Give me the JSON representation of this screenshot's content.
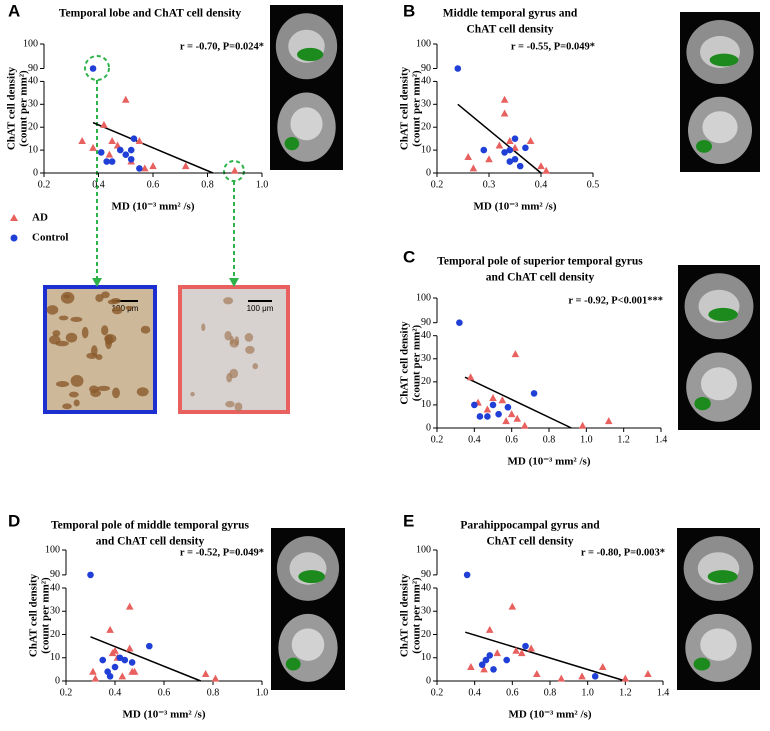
{
  "chart_data": [
    {
      "type": "scatter",
      "panel": "A",
      "title": [
        "Temporal lobe and ChAT cell density"
      ],
      "annotation": "r = -0.70, P=0.024*",
      "x_label": "MD (10⁻³ mm² /s)",
      "y_label": [
        "ChAT cell density",
        "(count per mm²)"
      ],
      "xlim": [
        0.2,
        1.0
      ],
      "xticks": [
        0.2,
        0.4,
        0.6,
        0.8,
        {
          "value": 1,
          "label": "1.0"
        }
      ],
      "ylim": [
        0,
        100
      ],
      "ybreak": [
        40,
        90
      ],
      "yticks": [
        0,
        10,
        20,
        30,
        40,
        90,
        100
      ],
      "series": [
        {
          "name": "AD",
          "color": "#e8615f",
          "marker": "triangle",
          "x": [
            0.34,
            0.38,
            0.42,
            0.44,
            0.45,
            0.47,
            0.5,
            0.52,
            0.55,
            0.57,
            0.6,
            0.72,
            0.9
          ],
          "values": [
            14,
            11,
            21,
            8,
            14,
            12,
            32,
            5,
            14,
            2,
            3,
            3,
            1
          ]
        },
        {
          "name": "Control",
          "color": "#1f3fd6",
          "marker": "circle",
          "x": [
            0.38,
            0.41,
            0.43,
            0.45,
            0.48,
            0.5,
            0.52,
            0.52,
            0.53,
            0.55
          ],
          "values": [
            90,
            9,
            5,
            5,
            10,
            8,
            10,
            6,
            15,
            2
          ]
        }
      ],
      "fit": {
        "x": [
          0.38,
          0.82
        ],
        "values": [
          22,
          0
        ]
      }
    },
    {
      "type": "scatter",
      "panel": "B",
      "title": [
        "Middle temporal gyrus and",
        "ChAT cell density"
      ],
      "annotation": "r = -0.55, P=0.049*",
      "x_label": "MD (10⁻³ mm² /s)",
      "y_label": [
        "ChAT cell density",
        "(count per mm²)"
      ],
      "xlim": [
        0.2,
        0.5
      ],
      "xticks": [
        0.2,
        0.3,
        0.4,
        0.5
      ],
      "ylim": [
        0,
        100
      ],
      "ybreak": [
        40,
        90
      ],
      "yticks": [
        0,
        10,
        20,
        30,
        40,
        90,
        100
      ],
      "series": [
        {
          "color": "#e8615f",
          "marker": "triangle",
          "x": [
            0.26,
            0.27,
            0.3,
            0.32,
            0.33,
            0.33,
            0.34,
            0.35,
            0.38,
            0.4,
            0.41
          ],
          "values": [
            7,
            2,
            6,
            12,
            32,
            26,
            14,
            11,
            14,
            3,
            1
          ]
        },
        {
          "color": "#1f3fd6",
          "marker": "circle",
          "x": [
            0.24,
            0.29,
            0.33,
            0.34,
            0.34,
            0.35,
            0.35,
            0.36,
            0.37
          ],
          "values": [
            90,
            10,
            9,
            5,
            10,
            15,
            6,
            3,
            11
          ]
        }
      ],
      "fit": {
        "x": [
          0.24,
          0.4
        ],
        "values": [
          30,
          0
        ]
      }
    },
    {
      "type": "scatter",
      "panel": "C",
      "title": [
        "Temporal pole of superior temporal gyrus",
        "and ChAT cell density"
      ],
      "annotation": "r = -0.92, P<0.001***",
      "x_label": "MD (10⁻³ mm² /s)",
      "y_label": [
        "ChAT cell density",
        "(count per mm²)"
      ],
      "xlim": [
        0.2,
        1.4
      ],
      "xticks": [
        0.2,
        0.4,
        0.6,
        0.8,
        {
          "value": 1,
          "label": "1.0"
        },
        1.2,
        1.4
      ],
      "ylim": [
        0,
        100
      ],
      "ybreak": [
        40,
        90
      ],
      "yticks": [
        0,
        10,
        20,
        30,
        40,
        90,
        100
      ],
      "series": [
        {
          "color": "#e8615f",
          "marker": "triangle",
          "x": [
            0.38,
            0.42,
            0.47,
            0.5,
            0.55,
            0.57,
            0.6,
            0.62,
            0.63,
            0.67,
            0.98,
            1.12
          ],
          "values": [
            22,
            11,
            8,
            13,
            12,
            3,
            6,
            32,
            4,
            1,
            1,
            3
          ]
        },
        {
          "color": "#1f3fd6",
          "marker": "circle",
          "x": [
            0.32,
            0.4,
            0.43,
            0.47,
            0.5,
            0.53,
            0.58,
            0.72
          ],
          "values": [
            90,
            10,
            5,
            5,
            10,
            6,
            9,
            15
          ]
        }
      ],
      "fit": {
        "x": [
          0.35,
          0.92
        ],
        "values": [
          22,
          0
        ]
      }
    },
    {
      "type": "scatter",
      "panel": "D",
      "title": [
        "Temporal pole of middle temporal gyrus",
        "and ChAT cell density"
      ],
      "annotation": "r = -0.52, P=0.049*",
      "x_label": "MD (10⁻³ mm² /s)",
      "y_label": [
        "ChAT cell density",
        "(count per mm²)"
      ],
      "xlim": [
        0.2,
        1.0
      ],
      "xticks": [
        0.2,
        0.4,
        0.6,
        0.8,
        {
          "value": 1,
          "label": "1.0"
        }
      ],
      "ylim": [
        0,
        100
      ],
      "ybreak": [
        40,
        90
      ],
      "yticks": [
        0,
        10,
        20,
        30,
        40,
        90,
        100
      ],
      "series": [
        {
          "color": "#e8615f",
          "marker": "triangle",
          "x": [
            0.31,
            0.32,
            0.38,
            0.39,
            0.4,
            0.41,
            0.43,
            0.46,
            0.46,
            0.47,
            0.48,
            0.77,
            0.81
          ],
          "values": [
            4,
            1,
            22,
            12,
            13,
            10,
            2,
            32,
            14,
            4,
            4,
            3,
            1
          ]
        },
        {
          "color": "#1f3fd6",
          "marker": "circle",
          "x": [
            0.3,
            0.35,
            0.37,
            0.38,
            0.4,
            0.42,
            0.44,
            0.47,
            0.54
          ],
          "values": [
            90,
            9,
            4,
            2,
            6,
            10,
            9,
            8,
            15
          ]
        }
      ],
      "fit": {
        "x": [
          0.3,
          0.75
        ],
        "values": [
          19,
          0
        ]
      }
    },
    {
      "type": "scatter",
      "panel": "E",
      "title": [
        "Parahippocampal gyrus and",
        "ChAT cell density"
      ],
      "annotation": "r = -0.80, P=0.003*",
      "x_label": "MD (10⁻³ mm² /s)",
      "y_label": [
        "ChAT cell density",
        "(count per mm²)"
      ],
      "xlim": [
        0.2,
        1.4
      ],
      "xticks": [
        0.2,
        0.4,
        0.6,
        0.8,
        {
          "value": 1,
          "label": "1.0"
        },
        1.2,
        1.4
      ],
      "ylim": [
        0,
        100
      ],
      "ybreak": [
        40,
        90
      ],
      "yticks": [
        0,
        10,
        20,
        30,
        40,
        90,
        100
      ],
      "series": [
        {
          "color": "#e8615f",
          "marker": "triangle",
          "x": [
            0.38,
            0.45,
            0.48,
            0.52,
            0.6,
            0.62,
            0.65,
            0.7,
            0.73,
            0.86,
            0.97,
            1.08,
            1.2,
            1.32
          ],
          "values": [
            6,
            5,
            22,
            12,
            32,
            13,
            12,
            14,
            3,
            1,
            2,
            6,
            1,
            3
          ]
        },
        {
          "color": "#1f3fd6",
          "marker": "circle",
          "x": [
            0.36,
            0.44,
            0.46,
            0.48,
            0.5,
            0.57,
            0.67,
            1.04
          ],
          "values": [
            90,
            7,
            9,
            11,
            5,
            9,
            15,
            2
          ]
        }
      ],
      "fit": {
        "x": [
          0.35,
          1.2
        ],
        "values": [
          21,
          0
        ]
      }
    }
  ],
  "scale_bars": [
    "100 μm",
    "100 μm"
  ]
}
